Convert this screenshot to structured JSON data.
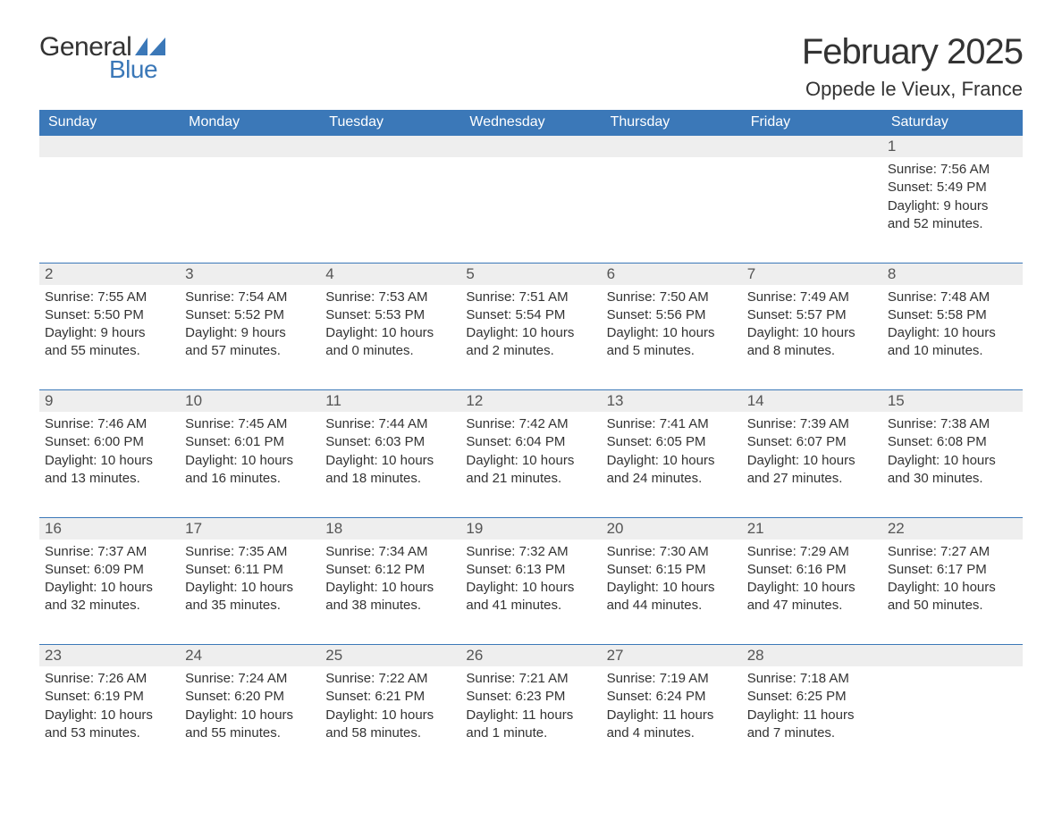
{
  "logo": {
    "word1": "General",
    "word2": "Blue"
  },
  "title": "February 2025",
  "location": "Oppede le Vieux, France",
  "colors": {
    "accent": "#3b78b8",
    "headerText": "#ffffff",
    "dayNumBg": "#eeeeee",
    "text": "#333333",
    "bg": "#ffffff"
  },
  "dayHeaders": [
    "Sunday",
    "Monday",
    "Tuesday",
    "Wednesday",
    "Thursday",
    "Friday",
    "Saturday"
  ],
  "weeks": [
    [
      null,
      null,
      null,
      null,
      null,
      null,
      {
        "num": "1",
        "sunrise": "Sunrise: 7:56 AM",
        "sunset": "Sunset: 5:49 PM",
        "day1": "Daylight: 9 hours",
        "day2": "and 52 minutes."
      }
    ],
    [
      {
        "num": "2",
        "sunrise": "Sunrise: 7:55 AM",
        "sunset": "Sunset: 5:50 PM",
        "day1": "Daylight: 9 hours",
        "day2": "and 55 minutes."
      },
      {
        "num": "3",
        "sunrise": "Sunrise: 7:54 AM",
        "sunset": "Sunset: 5:52 PM",
        "day1": "Daylight: 9 hours",
        "day2": "and 57 minutes."
      },
      {
        "num": "4",
        "sunrise": "Sunrise: 7:53 AM",
        "sunset": "Sunset: 5:53 PM",
        "day1": "Daylight: 10 hours",
        "day2": "and 0 minutes."
      },
      {
        "num": "5",
        "sunrise": "Sunrise: 7:51 AM",
        "sunset": "Sunset: 5:54 PM",
        "day1": "Daylight: 10 hours",
        "day2": "and 2 minutes."
      },
      {
        "num": "6",
        "sunrise": "Sunrise: 7:50 AM",
        "sunset": "Sunset: 5:56 PM",
        "day1": "Daylight: 10 hours",
        "day2": "and 5 minutes."
      },
      {
        "num": "7",
        "sunrise": "Sunrise: 7:49 AM",
        "sunset": "Sunset: 5:57 PM",
        "day1": "Daylight: 10 hours",
        "day2": "and 8 minutes."
      },
      {
        "num": "8",
        "sunrise": "Sunrise: 7:48 AM",
        "sunset": "Sunset: 5:58 PM",
        "day1": "Daylight: 10 hours",
        "day2": "and 10 minutes."
      }
    ],
    [
      {
        "num": "9",
        "sunrise": "Sunrise: 7:46 AM",
        "sunset": "Sunset: 6:00 PM",
        "day1": "Daylight: 10 hours",
        "day2": "and 13 minutes."
      },
      {
        "num": "10",
        "sunrise": "Sunrise: 7:45 AM",
        "sunset": "Sunset: 6:01 PM",
        "day1": "Daylight: 10 hours",
        "day2": "and 16 minutes."
      },
      {
        "num": "11",
        "sunrise": "Sunrise: 7:44 AM",
        "sunset": "Sunset: 6:03 PM",
        "day1": "Daylight: 10 hours",
        "day2": "and 18 minutes."
      },
      {
        "num": "12",
        "sunrise": "Sunrise: 7:42 AM",
        "sunset": "Sunset: 6:04 PM",
        "day1": "Daylight: 10 hours",
        "day2": "and 21 minutes."
      },
      {
        "num": "13",
        "sunrise": "Sunrise: 7:41 AM",
        "sunset": "Sunset: 6:05 PM",
        "day1": "Daylight: 10 hours",
        "day2": "and 24 minutes."
      },
      {
        "num": "14",
        "sunrise": "Sunrise: 7:39 AM",
        "sunset": "Sunset: 6:07 PM",
        "day1": "Daylight: 10 hours",
        "day2": "and 27 minutes."
      },
      {
        "num": "15",
        "sunrise": "Sunrise: 7:38 AM",
        "sunset": "Sunset: 6:08 PM",
        "day1": "Daylight: 10 hours",
        "day2": "and 30 minutes."
      }
    ],
    [
      {
        "num": "16",
        "sunrise": "Sunrise: 7:37 AM",
        "sunset": "Sunset: 6:09 PM",
        "day1": "Daylight: 10 hours",
        "day2": "and 32 minutes."
      },
      {
        "num": "17",
        "sunrise": "Sunrise: 7:35 AM",
        "sunset": "Sunset: 6:11 PM",
        "day1": "Daylight: 10 hours",
        "day2": "and 35 minutes."
      },
      {
        "num": "18",
        "sunrise": "Sunrise: 7:34 AM",
        "sunset": "Sunset: 6:12 PM",
        "day1": "Daylight: 10 hours",
        "day2": "and 38 minutes."
      },
      {
        "num": "19",
        "sunrise": "Sunrise: 7:32 AM",
        "sunset": "Sunset: 6:13 PM",
        "day1": "Daylight: 10 hours",
        "day2": "and 41 minutes."
      },
      {
        "num": "20",
        "sunrise": "Sunrise: 7:30 AM",
        "sunset": "Sunset: 6:15 PM",
        "day1": "Daylight: 10 hours",
        "day2": "and 44 minutes."
      },
      {
        "num": "21",
        "sunrise": "Sunrise: 7:29 AM",
        "sunset": "Sunset: 6:16 PM",
        "day1": "Daylight: 10 hours",
        "day2": "and 47 minutes."
      },
      {
        "num": "22",
        "sunrise": "Sunrise: 7:27 AM",
        "sunset": "Sunset: 6:17 PM",
        "day1": "Daylight: 10 hours",
        "day2": "and 50 minutes."
      }
    ],
    [
      {
        "num": "23",
        "sunrise": "Sunrise: 7:26 AM",
        "sunset": "Sunset: 6:19 PM",
        "day1": "Daylight: 10 hours",
        "day2": "and 53 minutes."
      },
      {
        "num": "24",
        "sunrise": "Sunrise: 7:24 AM",
        "sunset": "Sunset: 6:20 PM",
        "day1": "Daylight: 10 hours",
        "day2": "and 55 minutes."
      },
      {
        "num": "25",
        "sunrise": "Sunrise: 7:22 AM",
        "sunset": "Sunset: 6:21 PM",
        "day1": "Daylight: 10 hours",
        "day2": "and 58 minutes."
      },
      {
        "num": "26",
        "sunrise": "Sunrise: 7:21 AM",
        "sunset": "Sunset: 6:23 PM",
        "day1": "Daylight: 11 hours",
        "day2": "and 1 minute."
      },
      {
        "num": "27",
        "sunrise": "Sunrise: 7:19 AM",
        "sunset": "Sunset: 6:24 PM",
        "day1": "Daylight: 11 hours",
        "day2": "and 4 minutes."
      },
      {
        "num": "28",
        "sunrise": "Sunrise: 7:18 AM",
        "sunset": "Sunset: 6:25 PM",
        "day1": "Daylight: 11 hours",
        "day2": "and 7 minutes."
      },
      null
    ]
  ]
}
